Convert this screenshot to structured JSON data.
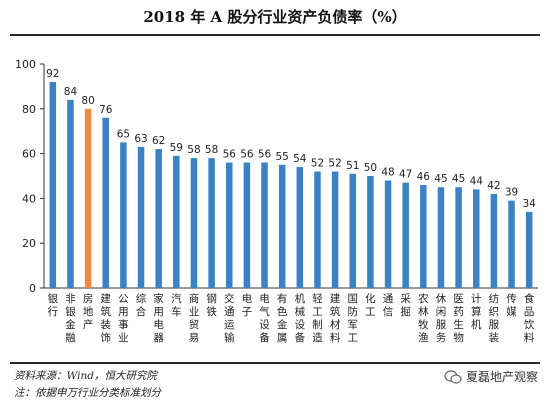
{
  "chart_data": {
    "type": "bar",
    "title": "2018 年 A 股分行业资产负债率（%）",
    "categories": [
      "银行",
      "非银金融",
      "房地产",
      "建筑装饰",
      "公用事业",
      "综合",
      "家用电器",
      "汽车",
      "商业贸易",
      "钢铁",
      "交通运输",
      "电子",
      "电气设备",
      "有色金属",
      "机械设备",
      "轻工制造",
      "建筑材料",
      "国防军工",
      "化工",
      "通信",
      "采掘",
      "农林牧渔",
      "休闲服务",
      "医药生物",
      "计算机",
      "纺织服装",
      "传媒",
      "食品饮料"
    ],
    "values": [
      92,
      84,
      80,
      76,
      65,
      63,
      62,
      59,
      58,
      58,
      56,
      56,
      56,
      55,
      54,
      52,
      52,
      51,
      50,
      48,
      47,
      46,
      45,
      45,
      44,
      42,
      39,
      34
    ],
    "ylim": [
      0,
      100
    ],
    "yticks": [
      0,
      20,
      40,
      60,
      80,
      100
    ],
    "xlabel": "",
    "ylabel": "",
    "highlight_index": 2,
    "colors": {
      "bar": "#3b82c4",
      "highlight": "#f08a3c"
    }
  },
  "footer": {
    "source": "资料来源：Wind，恒大研究院",
    "note": "注：依据申万行业分类标准划分",
    "watermark": "夏磊地产观察",
    "watermark_icon": "wechat-icon"
  }
}
